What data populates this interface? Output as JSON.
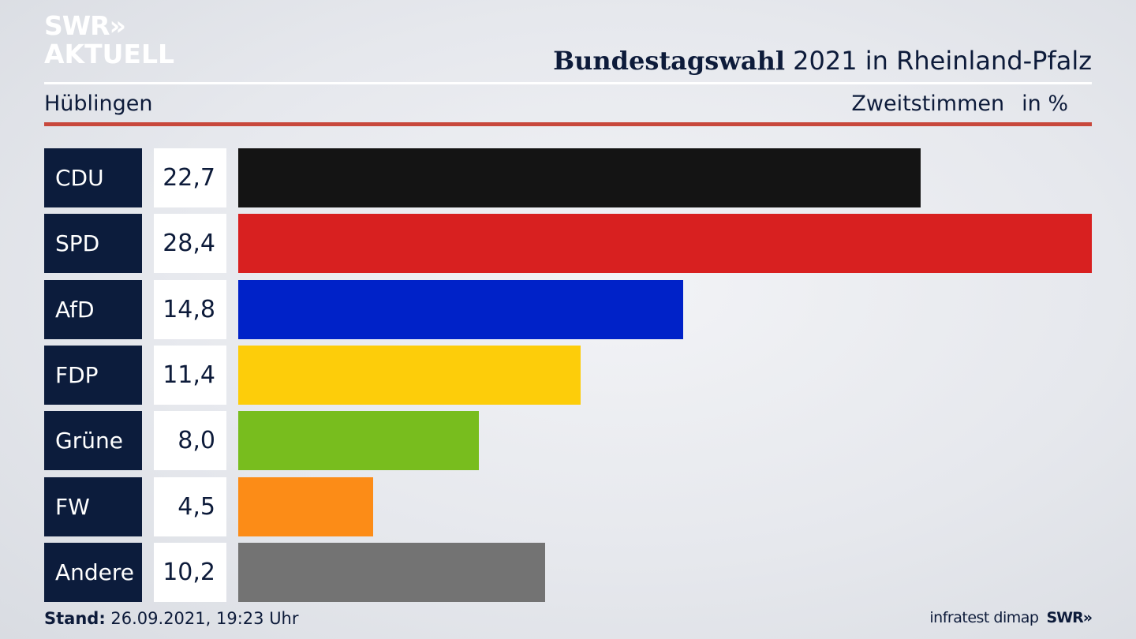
{
  "brand": {
    "line1": "SWR»",
    "line2": "AKTUELL"
  },
  "header": {
    "title_bold": "Bundestagswahl",
    "title_rest": "2021 in Rheinland-Pfalz"
  },
  "subheader": {
    "location": "Hüblingen",
    "measure": "Zweitstimmen",
    "unit": "in %"
  },
  "colors": {
    "accent_rule": "#c8483c",
    "label_bg": "#0c1c3c"
  },
  "chart_data": {
    "type": "bar",
    "orientation": "horizontal",
    "categories": [
      "CDU",
      "SPD",
      "AfD",
      "FDP",
      "Grüne",
      "FW",
      "Andere"
    ],
    "values": [
      22.7,
      28.4,
      14.8,
      11.4,
      8.0,
      4.5,
      10.2
    ],
    "value_labels": [
      "22,7",
      "28,4",
      "14,8",
      "11,4",
      "8,0",
      "4,5",
      "10,2"
    ],
    "colors": [
      "#141414",
      "#d82020",
      "#0022c8",
      "#fdcd0a",
      "#78bd1e",
      "#fc8c17",
      "#737373"
    ],
    "xlim": [
      0,
      28.4
    ]
  },
  "footer": {
    "stand_label": "Stand:",
    "stand_value": "26.09.2021, 19:23 Uhr",
    "source": "infratest dimap",
    "brand": "SWR»"
  }
}
